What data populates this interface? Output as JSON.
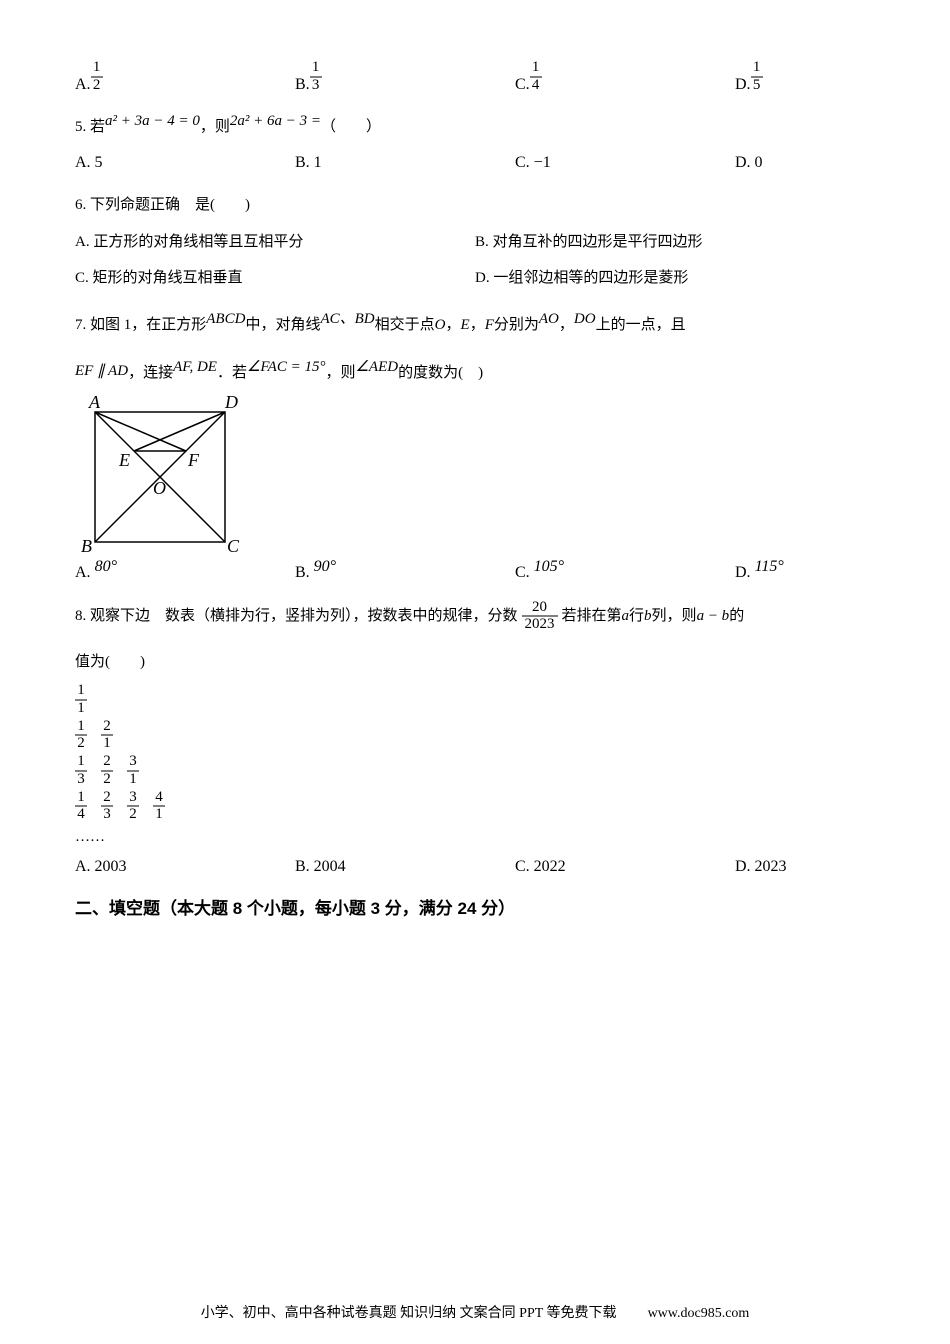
{
  "q4": {
    "a_label": "A. ",
    "a_num": "1",
    "a_den": "2",
    "b_label": "B. ",
    "b_num": "1",
    "b_den": "3",
    "c_label": "C. ",
    "c_num": "1",
    "c_den": "4",
    "d_label": "D. ",
    "d_num": "1",
    "d_den": "5"
  },
  "q5": {
    "stem_parts": {
      "p1": "5. 若",
      "eq1": "a² + 3a − 4 = 0",
      "p2": "，则",
      "eq2": "2a² + 6a − 3 =",
      "p3": "（　　）"
    },
    "a": "A. 5",
    "b": "B. 1",
    "c": "C. −1",
    "d": "D. 0"
  },
  "q6": {
    "stem": "6. 下列命题正确　是(　　)",
    "a": "A. 正方形的对角线相等且互相平分",
    "b": "B. 对角互补的四边形是平行四边形",
    "c": "C. 矩形的对角线互相垂直",
    "d": "D. 一组邻边相等的四边形是菱形"
  },
  "q7": {
    "stem_parts": {
      "p1": "7. 如图 1，在正方形",
      "abcd": "ABCD",
      "p2": "中，对角线",
      "ac": "AC",
      "dot": "、",
      "bd": "BD",
      "p3": "相交于点",
      "o": "O",
      "p4": "，",
      "e": "E",
      "p5": "，",
      "f": "F",
      "p6": "分别为",
      "ao": "AO",
      "p7": "，",
      "do": "DO",
      "p8": "上的一点，且",
      "line2a": "EF ∥ AD",
      "line2b": "，连接",
      "afde": "AF, DE",
      "line2c": "．若",
      "angle1": "∠FAC = 15°",
      "line2d": "，则",
      "angle2": "∠AED",
      "line2e": "的度数为(　)"
    },
    "diagram": {
      "A": "A",
      "B": "B",
      "C": "C",
      "D": "D",
      "E": "E",
      "F": "F",
      "O": "O",
      "stroke": "#000000",
      "stroke_width": 1.5
    },
    "a": "A. ",
    "a_val": "80°",
    "b": "B. ",
    "b_val": "90°",
    "c": "C. ",
    "c_val": "105°",
    "d": "D. ",
    "d_val": "115°"
  },
  "q8": {
    "stem_parts": {
      "p1": "8. 观察下边　数表（横排为行，竖排为列），按数表中的规律，分数",
      "frac_num": "20",
      "frac_den": "2023",
      "p2": "若排在第",
      "a": "a",
      "p3": "行",
      "b": "b",
      "p4": "列，则",
      "amb": "a − b",
      "p5": "的",
      "line2": "值为(　　)"
    },
    "table": [
      [
        {
          "n": "1",
          "d": "1"
        }
      ],
      [
        {
          "n": "1",
          "d": "2"
        },
        {
          "n": "2",
          "d": "1"
        }
      ],
      [
        {
          "n": "1",
          "d": "3"
        },
        {
          "n": "2",
          "d": "2"
        },
        {
          "n": "3",
          "d": "1"
        }
      ],
      [
        {
          "n": "1",
          "d": "4"
        },
        {
          "n": "2",
          "d": "3"
        },
        {
          "n": "3",
          "d": "2"
        },
        {
          "n": "4",
          "d": "1"
        }
      ]
    ],
    "ellipsis": "……",
    "a": "A. 2003",
    "b": "B. 2004",
    "c": "C. 2022",
    "d": "D. 2023"
  },
  "section2": "二、填空题（本大题 8 个小题，每小题 3 分，满分 24 分）",
  "footer": {
    "left": "小学、初中、高中各种试卷真题 知识归纳 文案合同 PPT 等免费下载",
    "right": "www.doc985.com"
  }
}
